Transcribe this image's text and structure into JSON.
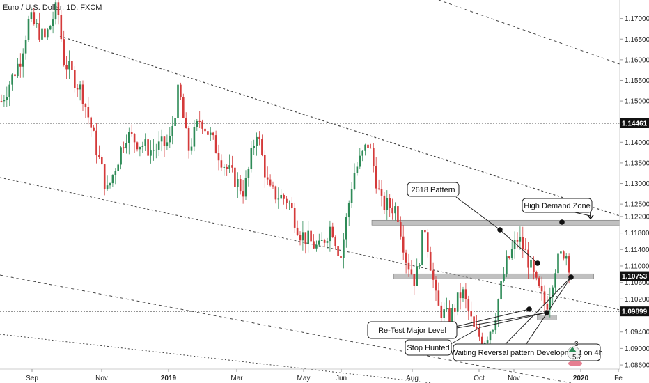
{
  "chart_data": {
    "type": "candlestick",
    "title": "Euro / U.S. Dollar, 1D, FXCM",
    "xlabel": "",
    "ylabel": "",
    "ylim": [
      1.085,
      1.1745
    ],
    "grid": false,
    "colors": {
      "up": "#2e8b57",
      "down": "#d43a3a",
      "zone": "#8c8c8c",
      "trend": "#444444",
      "level": "#555555",
      "tag_bg": "#111111"
    },
    "x_tick_labels": [
      "Sep",
      "Nov",
      "2019",
      "Mar",
      "May",
      "Jun",
      "Aug",
      "Oct",
      "Nov",
      "2020",
      "Fe"
    ],
    "y_ticks": [
      1.17,
      1.165,
      1.16,
      1.155,
      1.15,
      1.14,
      1.135,
      1.13,
      1.125,
      1.122,
      1.118,
      1.114,
      1.11,
      1.106,
      1.102,
      1.094,
      1.09,
      1.086
    ],
    "y_tick_labels": [
      "1.17000",
      "1.16500",
      "1.16000",
      "1.15500",
      "1.15000",
      "1.14000",
      "1.13500",
      "1.13000",
      "1.12500",
      "1.12200",
      "1.11800",
      "1.11400",
      "1.11000",
      "1.10600",
      "1.10200",
      "1.09400",
      "1.09000",
      "1.08600"
    ],
    "price_tags": [
      {
        "label": "1.14461",
        "value": 1.14461
      },
      {
        "label": "1.10753",
        "value": 1.10753
      },
      {
        "label": "1.09899",
        "value": 1.09899
      }
    ],
    "levels": [
      {
        "value": 1.14461,
        "style": "dotted"
      },
      {
        "value": 1.09899,
        "style": "dotted"
      }
    ],
    "zones": [
      {
        "value": 1.1205,
        "x_start_frac": 0.6,
        "x_end_frac": 1.0
      },
      {
        "value": 1.1075,
        "x_start_frac": 0.635,
        "x_end_frac": 0.958
      },
      {
        "value": 1.0975,
        "x_start_frac": 0.867,
        "x_end_frac": 0.898
      }
    ],
    "annotations": [
      {
        "label": "2618 Pattern"
      },
      {
        "label": "High Demand Zone"
      },
      {
        "label": "Re-Test Major Level"
      },
      {
        "label": "Stop Hunted"
      },
      {
        "label": "Waiting Reversal pattern Development on 4h"
      }
    ],
    "series_note_values": {
      "start": 1.148,
      "end": 1.10753
    }
  },
  "icons": {
    "down_arrow": "arrow-down-icon",
    "badge_numbers": [
      "3",
      "5",
      "7"
    ]
  }
}
